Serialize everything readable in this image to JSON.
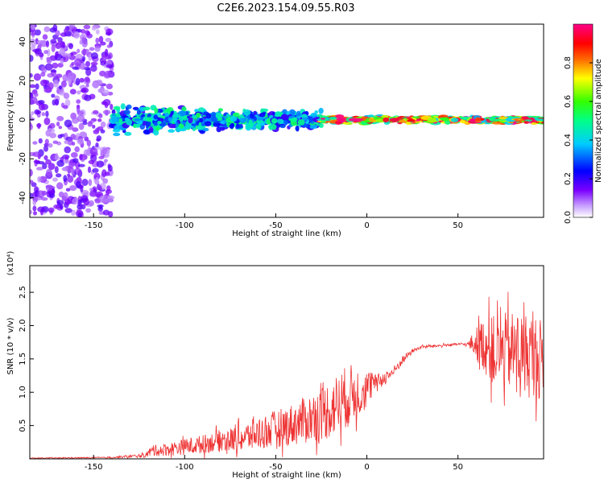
{
  "figure": {
    "title": "C2E6.2023.154.09.55.R03"
  },
  "chart_data": [
    {
      "type": "heatmap",
      "title": "",
      "xlabel": "Height of straight line (km)",
      "ylabel": "Frequency (Hz)",
      "xlim": [
        -185,
        97
      ],
      "ylim": [
        -50,
        49
      ],
      "xticks": [
        -150,
        -100,
        -50,
        0,
        50
      ],
      "yticks": [
        -40,
        -20,
        0,
        20,
        40
      ],
      "colorbar": {
        "label": "Normalized spectral amplitude",
        "range": [
          0,
          1
        ],
        "ticks": [
          "0.0",
          "0.2",
          "0.4",
          "0.6",
          "0.8"
        ],
        "colormap": [
          "#ffffff",
          "#7b00ff",
          "#0000ff",
          "#00ffff",
          "#00ff00",
          "#ffff00",
          "#ff0000",
          "#ff00aa"
        ]
      },
      "features": [
        {
          "x_range": [
            -185,
            -140
          ],
          "description_values": {
            "freq_center": 0,
            "freq_spread": 49,
            "amplitude": 0.15
          }
        },
        {
          "x_range": [
            -140,
            -25
          ],
          "description_values": {
            "freq_center": 0,
            "freq_spread": 8,
            "amplitude": 0.45
          }
        },
        {
          "x_range": [
            -25,
            97
          ],
          "description_values": {
            "freq_center": 0,
            "freq_spread": 2,
            "amplitude": 0.9
          }
        }
      ],
      "grid": false
    },
    {
      "type": "line",
      "title": "",
      "xlabel": "Height of straight line (km)",
      "ylabel": "SNR (10 * v/v)",
      "y_multiplier": "(x10⁴)",
      "xlim": [
        -185,
        97
      ],
      "ylim": [
        0,
        2.9
      ],
      "xticks": [
        -150,
        -100,
        -50,
        0,
        50
      ],
      "yticks": [
        "0.5",
        "1.0",
        "1.5",
        "2.0",
        "2.5"
      ],
      "series": [
        {
          "color": "#ee3333",
          "x": [
            -185,
            -140,
            -122,
            -118,
            -110,
            -100,
            -90,
            -80,
            -70,
            -60,
            -50,
            -40,
            -30,
            -20,
            -10,
            0,
            5,
            10,
            15,
            20,
            25,
            30,
            40,
            50,
            55,
            60,
            65,
            70,
            80,
            90,
            97
          ],
          "mean": [
            0.01,
            0.02,
            0.05,
            0.12,
            0.14,
            0.18,
            0.22,
            0.28,
            0.3,
            0.38,
            0.45,
            0.52,
            0.62,
            0.75,
            0.95,
            1.05,
            1.15,
            1.22,
            1.32,
            1.5,
            1.62,
            1.68,
            1.7,
            1.72,
            1.72,
            1.73,
            1.72,
            1.6,
            1.62,
            1.55,
            1.5
          ],
          "noise": [
            0.005,
            0.01,
            0.03,
            0.08,
            0.1,
            0.12,
            0.14,
            0.16,
            0.2,
            0.25,
            0.28,
            0.32,
            0.38,
            0.45,
            0.48,
            0.3,
            0.12,
            0.1,
            0.08,
            0.06,
            0.03,
            0.02,
            0.02,
            0.02,
            0.02,
            0.25,
            0.45,
            0.55,
            0.6,
            0.65,
            0.6
          ]
        }
      ],
      "grid": false
    }
  ]
}
